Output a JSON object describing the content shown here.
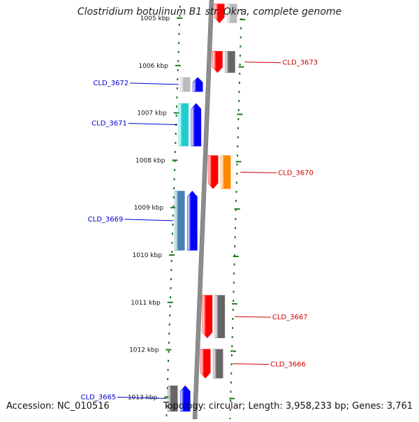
{
  "title": "Clostridium botulinum B1 str. Okra, complete genome",
  "accession": "Accession: NC_010516",
  "topology_info": "Topology: circular; Length: 3,958,233 bp; Genes: 3,761",
  "colors": {
    "backbone": "#8c8c8c",
    "scale_ticks": "#1e7a1e",
    "left_label": "#0000cc",
    "right_label": "#cc0000",
    "forward_gene": "#0000ff",
    "reverse_gene": "#ff0000",
    "gray_gene": "#666666",
    "light_gray_gene": "#bbbbbb",
    "cyan_gene": "#22cccc",
    "steel_gene": "#4682b4",
    "orange_gene": "#ff8800"
  },
  "scale": {
    "unit": "kbp",
    "ticks": [
      {
        "kbp": 1005,
        "label": "1005 kbp"
      },
      {
        "kbp": 1006,
        "label": "1006 kbp"
      },
      {
        "kbp": 1007,
        "label": "1007 kbp"
      },
      {
        "kbp": 1008,
        "label": "1008 kbp"
      },
      {
        "kbp": 1009,
        "label": "1009 kbp"
      },
      {
        "kbp": 1010,
        "label": "1010 kbp"
      },
      {
        "kbp": 1011,
        "label": "1011 kbp"
      },
      {
        "kbp": 1012,
        "label": "1012 kbp"
      },
      {
        "kbp": 1013,
        "label": "1013 kbp"
      }
    ]
  },
  "genes": [
    {
      "start": 1004.7,
      "end": 1005.1,
      "strand": "reverse",
      "color": "red",
      "partner_color": "light_gray"
    },
    {
      "start": 1005.7,
      "end": 1006.15,
      "strand": "reverse",
      "color": "red",
      "partner_color": "gray",
      "label": "CLD_3673"
    },
    {
      "start": 1006.25,
      "end": 1006.55,
      "strand": "forward",
      "color": "blue",
      "partner_color": "light_gray",
      "label": "CLD_3672"
    },
    {
      "start": 1006.8,
      "end": 1007.7,
      "strand": "forward",
      "color": "blue",
      "partner_color": "cyan",
      "label": "CLD_3671"
    },
    {
      "start": 1007.9,
      "end": 1008.6,
      "strand": "reverse",
      "color": "red",
      "partner_color": "orange",
      "label": "CLD_3670"
    },
    {
      "start": 1008.65,
      "end": 1009.9,
      "strand": "forward",
      "color": "blue",
      "partner_color": "steel",
      "label": "CLD_3669"
    },
    {
      "start": 1010.85,
      "end": 1011.75,
      "strand": "reverse",
      "color": "red",
      "partner_color": "gray",
      "label": "CLD_3667"
    },
    {
      "start": 1011.99,
      "end": 1012.6,
      "strand": "reverse",
      "color": "red",
      "partner_color": "gray",
      "label": "CLD_3666"
    },
    {
      "start": 1012.76,
      "end": 1013.3,
      "strand": "forward",
      "color": "blue",
      "partner_color": "gray",
      "label": "CLD_3665"
    }
  ]
}
